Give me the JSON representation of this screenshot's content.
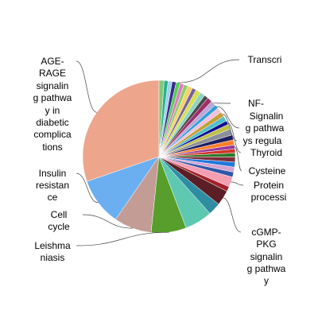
{
  "chart_data": {
    "type": "pie",
    "title": "",
    "start_angle_deg": 0,
    "direction": "counterclockwise",
    "slices": [
      {
        "label": "AGE-RAGE signaling pathway in diabetic complications",
        "value": 28.5,
        "color": "#eda68b"
      },
      {
        "label": "Insulin resistance",
        "value": 9.5,
        "color": "#6baff0"
      },
      {
        "label": "Cell cycle",
        "value": 7.5,
        "color": "#c29c95"
      },
      {
        "label": "Leishmaniasis",
        "value": 7.0,
        "color": "#579e2c"
      },
      {
        "label": "",
        "value": 5.5,
        "color": "#5ec9b0"
      },
      {
        "label": "",
        "value": 2.5,
        "color": "#2f8da2"
      },
      {
        "label": "cGMP-PKG signaling pathway",
        "value": 3.0,
        "color": "#5a1e24"
      },
      {
        "label": "",
        "value": 1.0,
        "color": "#a32029"
      },
      {
        "label": "",
        "value": 2.0,
        "color": "#f49eb2"
      },
      {
        "label": "",
        "value": 1.0,
        "color": "#3157a7"
      },
      {
        "label": "",
        "value": 1.0,
        "color": "#d5a3d0"
      },
      {
        "label": "",
        "value": 1.0,
        "color": "#2278dc"
      },
      {
        "label": "",
        "value": 1.0,
        "color": "#7e2c3c"
      },
      {
        "label": "",
        "value": 0.8,
        "color": "#2c7a26"
      },
      {
        "label": "",
        "value": 0.8,
        "color": "#d0352a"
      },
      {
        "label": "Cysteine",
        "value": 0.8,
        "color": "#9a3a99"
      },
      {
        "label": "",
        "value": 1.0,
        "color": "#ff7f2a"
      },
      {
        "label": "",
        "value": 1.0,
        "color": "#1e1e5e"
      },
      {
        "label": "",
        "value": 1.2,
        "color": "#8b8f9a"
      },
      {
        "label": "",
        "value": 1.0,
        "color": "#c0c04a"
      },
      {
        "label": "",
        "value": 0.8,
        "color": "#101090"
      },
      {
        "label": "",
        "value": 1.0,
        "color": "#4fbfcf"
      },
      {
        "label": "",
        "value": 1.0,
        "color": "#c4a03a"
      },
      {
        "label": "",
        "value": 1.0,
        "color": "#f3c0d8"
      },
      {
        "label": "",
        "value": 0.8,
        "color": "#2f9ed8"
      },
      {
        "label": "",
        "value": 1.0,
        "color": "#b8a9d8"
      },
      {
        "label": "",
        "value": 1.0,
        "color": "#9f2e68"
      },
      {
        "label": "",
        "value": 0.8,
        "color": "#4a4a4a"
      },
      {
        "label": "",
        "value": 1.0,
        "color": "#8dd3c7"
      },
      {
        "label": "",
        "value": 1.0,
        "color": "#d8e050"
      },
      {
        "label": "",
        "value": 0.8,
        "color": "#7a5fa0"
      },
      {
        "label": "",
        "value": 1.0,
        "color": "#f5d36a"
      },
      {
        "label": "",
        "value": 0.8,
        "color": "#8bd06a"
      },
      {
        "label": "",
        "value": 0.8,
        "color": "#e27ac2"
      },
      {
        "label": "",
        "value": 0.8,
        "color": "#50d050"
      },
      {
        "label": "",
        "value": 0.8,
        "color": "#3a2a8a"
      },
      {
        "label": "",
        "value": 0.8,
        "color": "#a0d0f0"
      },
      {
        "label": "",
        "value": 0.8,
        "color": "#2fb08a"
      },
      {
        "label": "",
        "value": 1.0,
        "color": "#7fc97f"
      }
    ],
    "labels": [
      {
        "text": "AGE-",
        "slice": 0
      },
      {
        "text": "RAGE",
        "slice": 0
      },
      {
        "text": "signalin",
        "slice": 0
      },
      {
        "text": "g pathwa",
        "slice": 0
      },
      {
        "text": "y in",
        "slice": 0
      },
      {
        "text": "diabetic",
        "slice": 0
      },
      {
        "text": "complica",
        "slice": 0
      },
      {
        "text": "tions",
        "slice": 0
      },
      {
        "text": "Insulin",
        "slice": 1
      },
      {
        "text": "resistan",
        "slice": 1
      },
      {
        "text": "ce",
        "slice": 1
      },
      {
        "text": "Cell",
        "slice": 2
      },
      {
        "text": "cycle",
        "slice": 2
      },
      {
        "text": "Leishma",
        "slice": 3
      },
      {
        "text": "niasis",
        "slice": 3
      },
      {
        "text": "cGMP-",
        "slice": 6
      },
      {
        "text": "PKG",
        "slice": 6
      },
      {
        "text": "signalin",
        "slice": 6
      },
      {
        "text": "g pathwa",
        "slice": 6
      },
      {
        "text": "y",
        "slice": 6
      },
      {
        "text": "Protein",
        "slice": 8
      },
      {
        "text": "processi",
        "slice": 8
      },
      {
        "text": "Cysteine",
        "slice": 15
      },
      {
        "text": "Thyroid",
        "slice": 20
      },
      {
        "text": "ys regula",
        "slice": 22
      },
      {
        "text": "g pathwa",
        "slice": 24
      },
      {
        "text": "Signalin",
        "slice": 24
      },
      {
        "text": "NF-",
        "slice": 25
      },
      {
        "text": "Transcri",
        "slice": 34
      }
    ]
  }
}
